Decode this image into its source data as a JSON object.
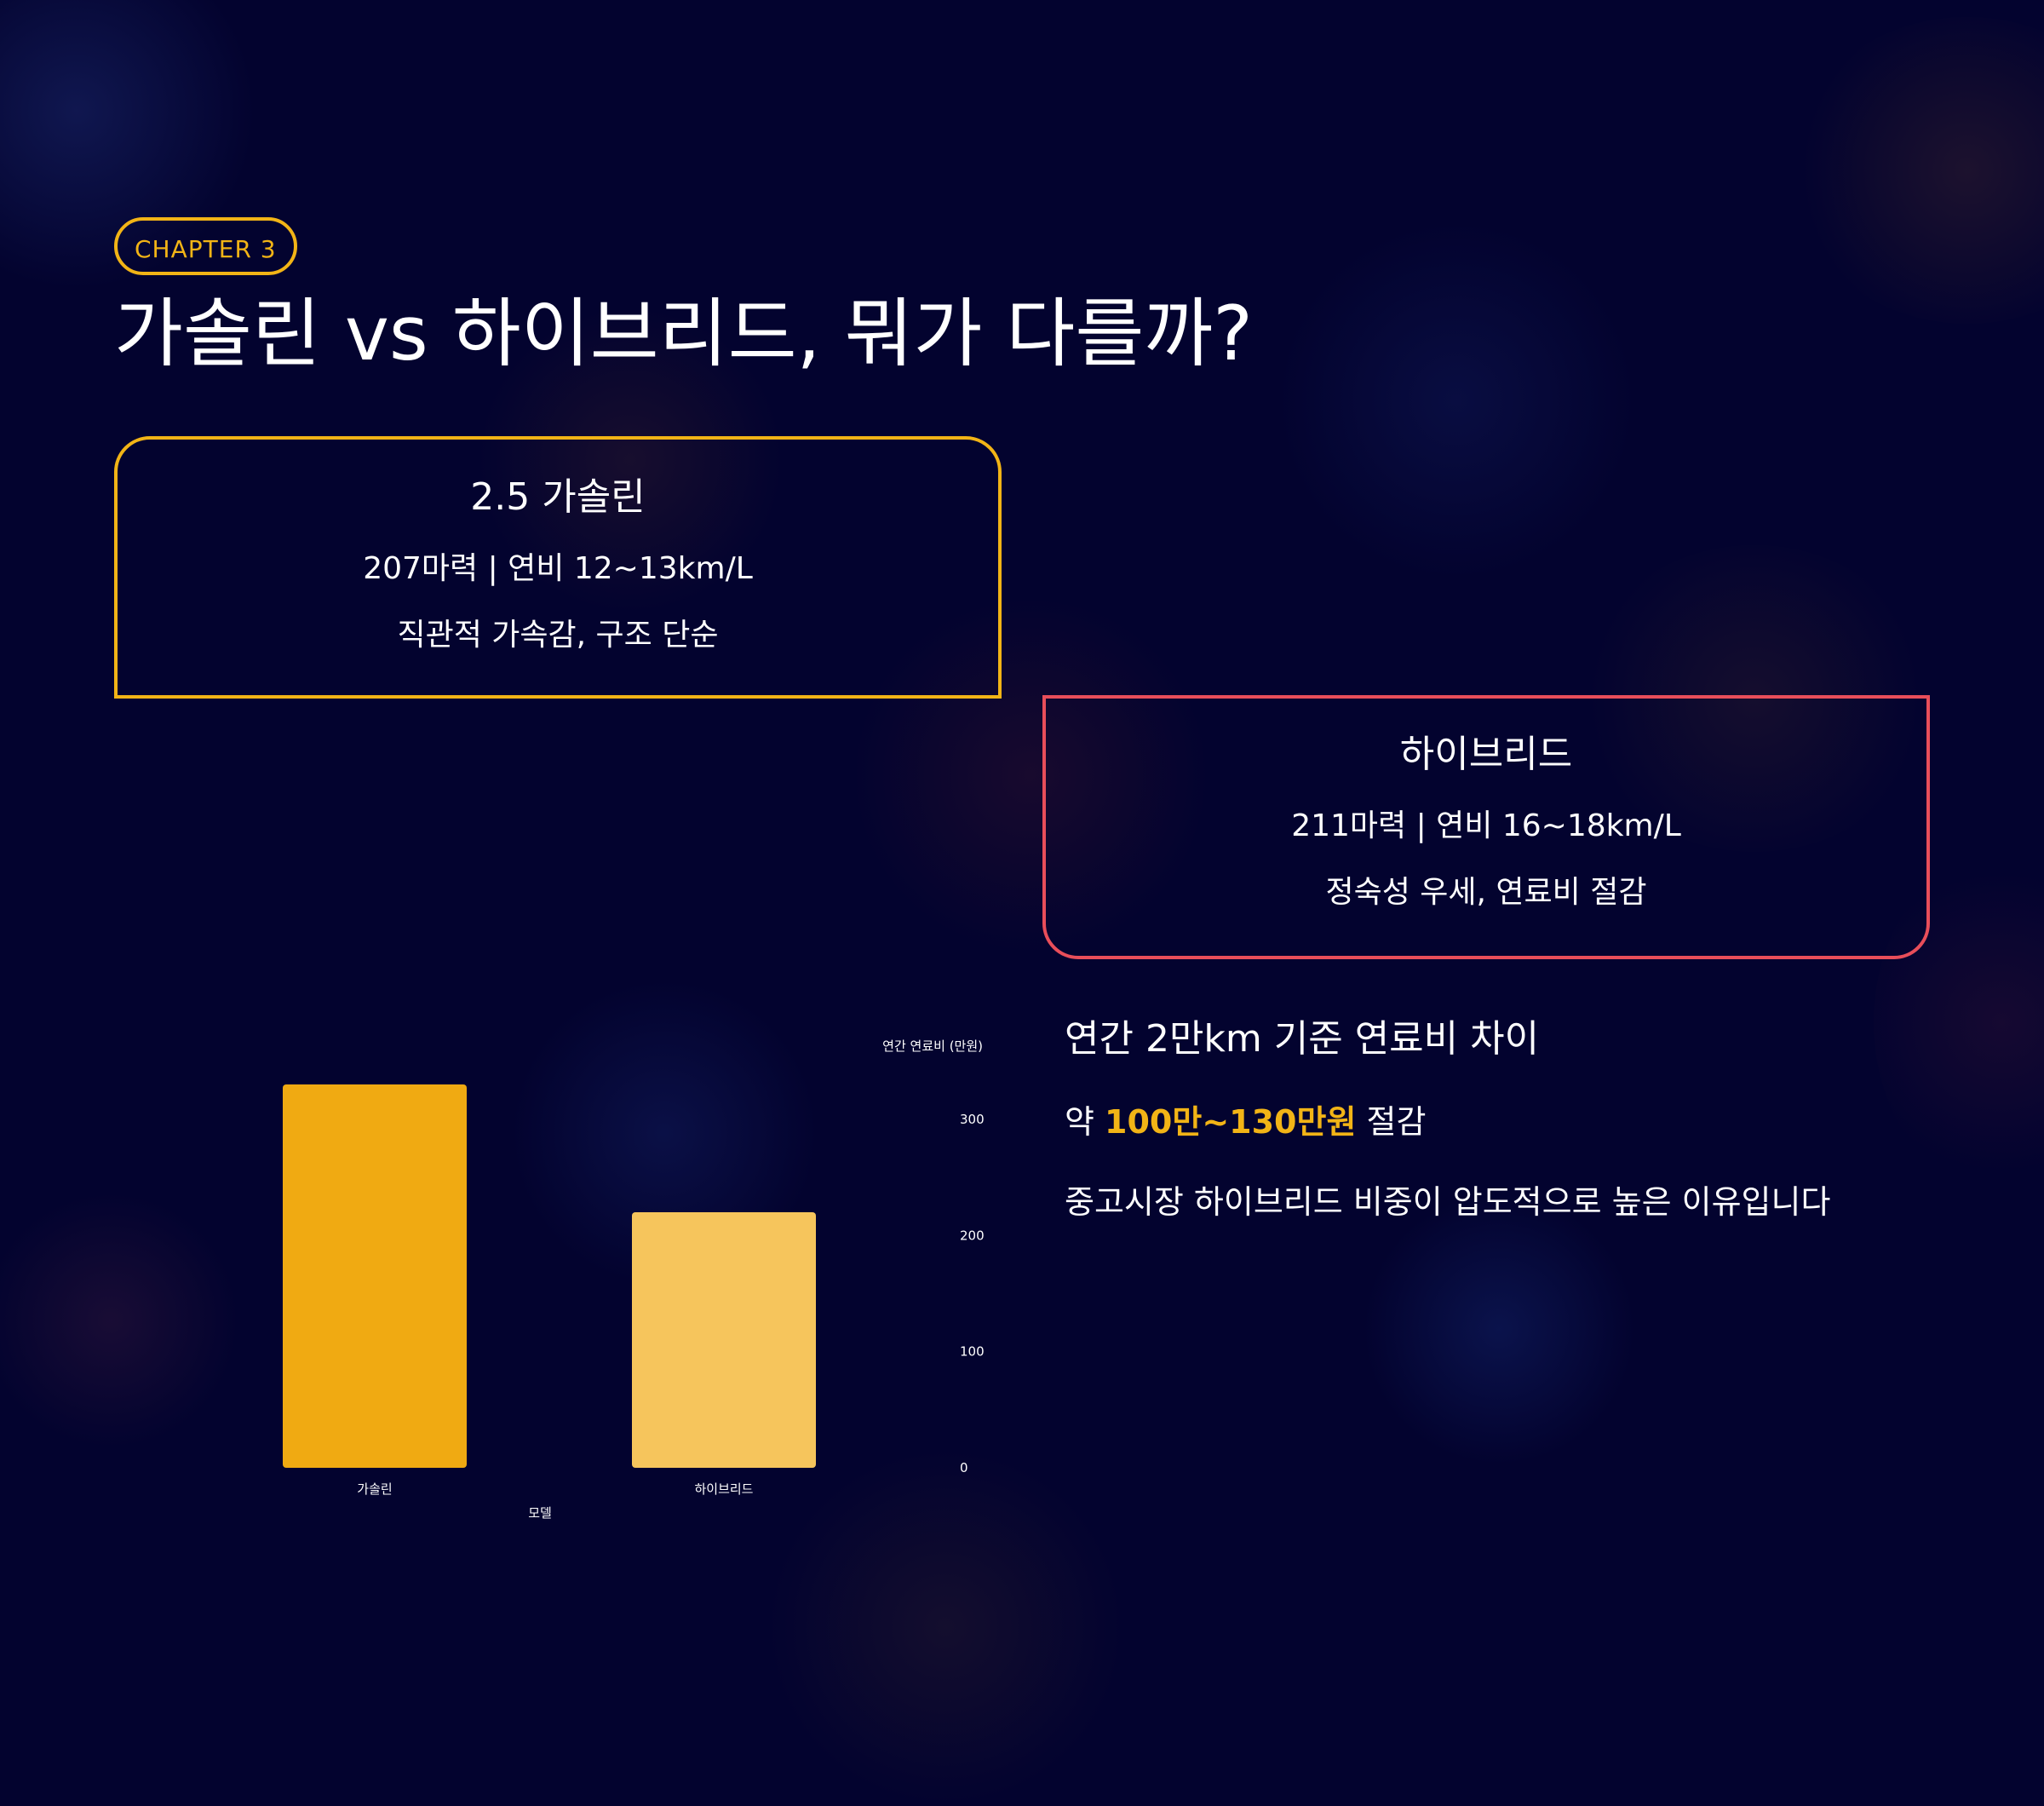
{
  "chapter_badge": "CHAPTER 3",
  "title": "가솔린 vs 하이브리드, 뭐가 다를까?",
  "cards": {
    "gasoline": {
      "title": "2.5 가솔린",
      "spec": "207마력 | 연비 12~13km/L",
      "feature": "직관적 가속감, 구조 단순"
    },
    "hybrid": {
      "title": "하이브리드",
      "spec": "211마력 | 연비 16~18km/L",
      "feature": "정숙성 우세, 연료비 절감"
    }
  },
  "summary": {
    "heading": "연간 2만km 기준 연료비 차이",
    "saving_prefix": "약 ",
    "saving_highlight": "100만~130만원",
    "saving_suffix": " 절감",
    "reason": "중고시장 하이브리드 비중이 압도적으로 높은 이유입니다"
  },
  "colors": {
    "background": "#03032f",
    "accent": "#f2b416",
    "hybrid_border": "#e84e5a",
    "bar_gasoline": "#f0aa12",
    "bar_hybrid": "#f6c55c"
  },
  "chart_data": {
    "type": "bar",
    "categories": [
      "가솔린",
      "하이브리드"
    ],
    "values": [
      330,
      220
    ],
    "xlabel": "모델",
    "ylabel": "연간 연료비 (만원)",
    "ylim": [
      0,
      330
    ],
    "y_ticks": [
      0,
      100,
      200,
      300
    ],
    "y_axis_position": "right",
    "grid": false,
    "bar_colors": [
      "#f0aa12",
      "#f6c55c"
    ]
  }
}
